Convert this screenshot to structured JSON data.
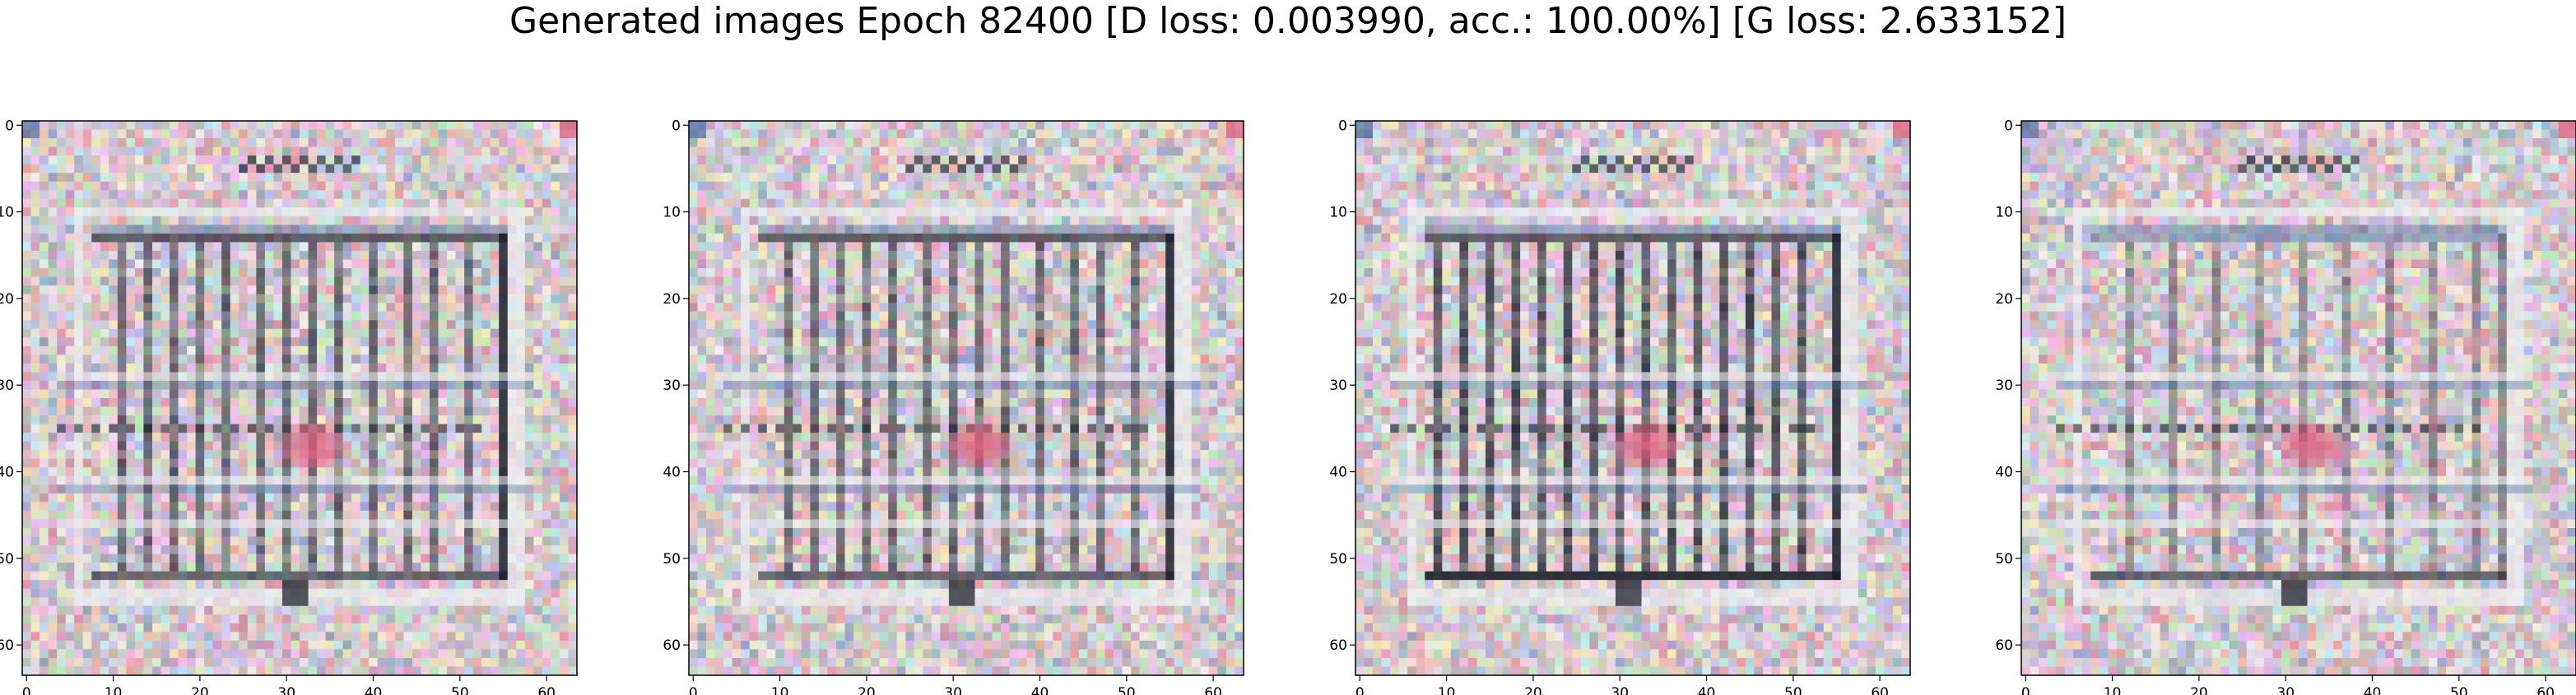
{
  "figure": {
    "suptitle": "Generated images Epoch 82400 [D loss: 0.003990, acc.: 100.00%] [G loss: 2.633152]"
  },
  "colors": {
    "background": "#ffffff",
    "axes_frame": "#000000",
    "pixel_base": "#d6d0d2",
    "grid_light": "#eef0f2",
    "grid_dark": "#111622",
    "accent_pink": "#e05a7a",
    "accent_blue": "#4a6aa0"
  },
  "chart_data": [
    {
      "type": "heatmap",
      "title": "",
      "xlabel": "",
      "ylabel": "",
      "image_shape": [
        64,
        64
      ],
      "xlim": [
        0,
        63
      ],
      "ylim": [
        63,
        0
      ],
      "xticks": [
        "0",
        "10",
        "20",
        "30",
        "40",
        "50",
        "60"
      ],
      "yticks": [
        "0",
        "10",
        "20",
        "30",
        "40",
        "50",
        "60"
      ],
      "grid": false,
      "variant": 1
    },
    {
      "type": "heatmap",
      "title": "",
      "xlabel": "",
      "ylabel": "",
      "image_shape": [
        64,
        64
      ],
      "xlim": [
        0,
        63
      ],
      "ylim": [
        63,
        0
      ],
      "xticks": [
        "0",
        "10",
        "20",
        "30",
        "40",
        "50",
        "60"
      ],
      "yticks": [
        "0",
        "10",
        "20",
        "30",
        "40",
        "50",
        "60"
      ],
      "grid": false,
      "variant": 2
    },
    {
      "type": "heatmap",
      "title": "",
      "xlabel": "",
      "ylabel": "",
      "image_shape": [
        64,
        64
      ],
      "xlim": [
        0,
        63
      ],
      "ylim": [
        63,
        0
      ],
      "xticks": [
        "0",
        "10",
        "20",
        "30",
        "40",
        "50",
        "60"
      ],
      "yticks": [
        "0",
        "10",
        "20",
        "30",
        "40",
        "50",
        "60"
      ],
      "grid": false,
      "variant": 3
    },
    {
      "type": "heatmap",
      "title": "",
      "xlabel": "",
      "ylabel": "",
      "image_shape": [
        64,
        64
      ],
      "xlim": [
        0,
        63
      ],
      "ylim": [
        63,
        0
      ],
      "xticks": [
        "0",
        "10",
        "20",
        "30",
        "40",
        "50",
        "60"
      ],
      "yticks": [
        "0",
        "10",
        "20",
        "30",
        "40",
        "50",
        "60"
      ],
      "grid": false,
      "variant": 4
    }
  ]
}
